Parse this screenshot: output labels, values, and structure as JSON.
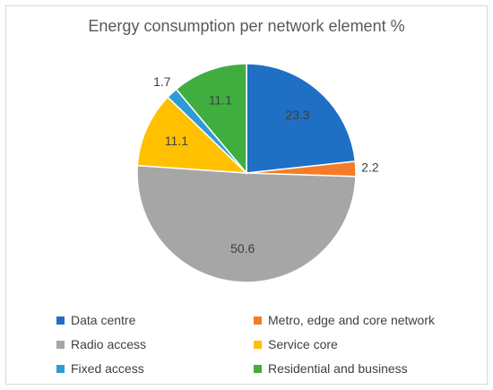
{
  "chart_data": {
    "type": "pie",
    "title": "Energy consumption per network element %",
    "categories": [
      "Data centre",
      "Metro, edge and core network",
      "Radio access",
      "Service core",
      "Fixed access",
      "Residential and business"
    ],
    "values": [
      23.3,
      2.2,
      50.6,
      11.1,
      1.7,
      11.1
    ],
    "data_labels": [
      "23.3",
      "2.2",
      "50.6",
      "11.1",
      "1.7",
      "11.1"
    ],
    "colors": [
      "#1f6fc5",
      "#f47c29",
      "#a6a6a6",
      "#ffc000",
      "#2e9bd6",
      "#3fae3f"
    ],
    "legend_position": "bottom",
    "start_angle_deg": 0,
    "direction": "clockwise"
  }
}
